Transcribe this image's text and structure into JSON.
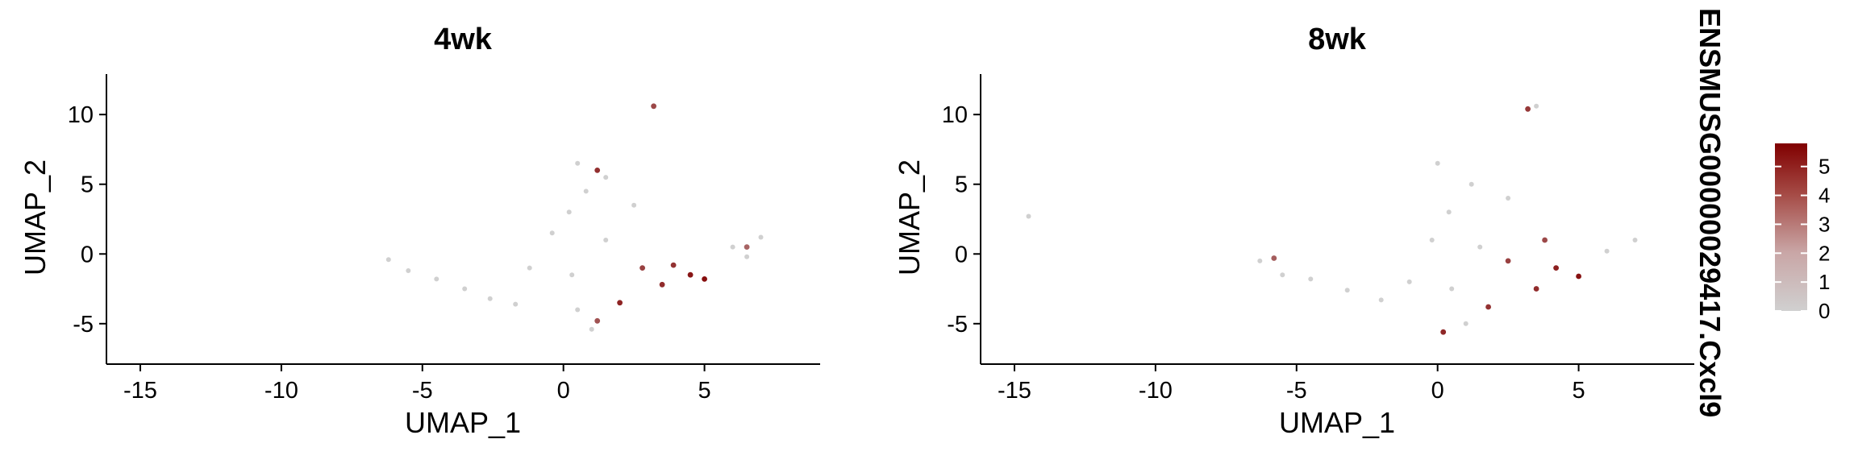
{
  "figure": {
    "legend_title": "ENSMUSG00000029417.Cxcl9"
  },
  "chart_data": [
    {
      "type": "scatter",
      "title": "4wk",
      "xlabel": "UMAP_1",
      "ylabel": "UMAP_2",
      "xlim": [
        -16.2,
        9.1
      ],
      "ylim": [
        -7.9,
        12.9
      ],
      "xticks": [
        -15,
        -10,
        -5,
        0,
        5
      ],
      "yticks": [
        -5,
        0,
        5,
        10
      ],
      "color_variable": "ENSMUSG00000029417.Cxcl9",
      "color_range": [
        0,
        5.8
      ],
      "colors": {
        "low": "#d0d0d0",
        "high": "#800000"
      },
      "series": [
        {
          "values": [
            {
              "x": -6.2,
              "y": -0.4,
              "v": 0
            },
            {
              "x": -5.5,
              "y": -1.2,
              "v": 0
            },
            {
              "x": -4.5,
              "y": -1.8,
              "v": 0
            },
            {
              "x": -3.5,
              "y": -2.5,
              "v": 0
            },
            {
              "x": -2.6,
              "y": -3.2,
              "v": 0
            },
            {
              "x": -1.7,
              "y": -3.6,
              "v": 0
            },
            {
              "x": -1.2,
              "y": -1.0,
              "v": 0
            },
            {
              "x": -0.4,
              "y": 1.5,
              "v": 0
            },
            {
              "x": 0.2,
              "y": 3.0,
              "v": 0
            },
            {
              "x": 0.8,
              "y": 4.5,
              "v": 0
            },
            {
              "x": 0.5,
              "y": 6.5,
              "v": 0
            },
            {
              "x": 1.5,
              "y": 5.5,
              "v": 0
            },
            {
              "x": 2.5,
              "y": 3.5,
              "v": 0
            },
            {
              "x": 1.5,
              "y": 1.0,
              "v": 0
            },
            {
              "x": 0.3,
              "y": -1.5,
              "v": 0
            },
            {
              "x": 0.5,
              "y": -4.0,
              "v": 0
            },
            {
              "x": 1.0,
              "y": -5.4,
              "v": 0
            },
            {
              "x": 6.0,
              "y": 0.5,
              "v": 0
            },
            {
              "x": 7.0,
              "y": 1.2,
              "v": 0
            },
            {
              "x": 6.5,
              "y": -0.2,
              "v": 0
            },
            {
              "x": 3.2,
              "y": 10.6,
              "v": 3.8
            },
            {
              "x": 1.2,
              "y": 6.0,
              "v": 4.5
            },
            {
              "x": 4.5,
              "y": -1.5,
              "v": 5.2
            },
            {
              "x": 5.0,
              "y": -1.8,
              "v": 5.4
            },
            {
              "x": 3.5,
              "y": -2.2,
              "v": 4.6
            },
            {
              "x": 2.8,
              "y": -1.0,
              "v": 4.0
            },
            {
              "x": 2.0,
              "y": -3.5,
              "v": 4.8
            },
            {
              "x": 1.2,
              "y": -4.8,
              "v": 3.5
            },
            {
              "x": 3.9,
              "y": -0.8,
              "v": 4.4
            },
            {
              "x": 6.5,
              "y": 0.5,
              "v": 3.0
            }
          ]
        }
      ]
    },
    {
      "type": "scatter",
      "title": "8wk",
      "xlabel": "UMAP_1",
      "ylabel": "UMAP_2",
      "xlim": [
        -16.2,
        9.1
      ],
      "ylim": [
        -7.9,
        12.9
      ],
      "xticks": [
        -15,
        -10,
        -5,
        0,
        5
      ],
      "yticks": [
        -5,
        0,
        5,
        10
      ],
      "color_variable": "ENSMUSG00000029417.Cxcl9",
      "color_range": [
        0,
        5.8
      ],
      "colors": {
        "low": "#d0d0d0",
        "high": "#800000"
      },
      "series": [
        {
          "values": [
            {
              "x": -14.5,
              "y": 2.7,
              "v": 0
            },
            {
              "x": -6.3,
              "y": -0.5,
              "v": 0
            },
            {
              "x": -5.5,
              "y": -1.5,
              "v": 0
            },
            {
              "x": -4.5,
              "y": -1.8,
              "v": 0
            },
            {
              "x": -3.2,
              "y": -2.6,
              "v": 0
            },
            {
              "x": -2.0,
              "y": -3.3,
              "v": 0
            },
            {
              "x": -1.0,
              "y": -2.0,
              "v": 0
            },
            {
              "x": -0.2,
              "y": 1.0,
              "v": 0
            },
            {
              "x": 0.4,
              "y": 3.0,
              "v": 0
            },
            {
              "x": 1.2,
              "y": 5.0,
              "v": 0
            },
            {
              "x": 0.0,
              "y": 6.5,
              "v": 0
            },
            {
              "x": 2.5,
              "y": 4.0,
              "v": 0
            },
            {
              "x": 1.5,
              "y": 0.5,
              "v": 0
            },
            {
              "x": 0.5,
              "y": -2.5,
              "v": 0
            },
            {
              "x": 1.0,
              "y": -5.0,
              "v": 0
            },
            {
              "x": 6.0,
              "y": 0.2,
              "v": 0
            },
            {
              "x": 7.0,
              "y": 1.0,
              "v": 0
            },
            {
              "x": 3.5,
              "y": 10.6,
              "v": 0
            },
            {
              "x": 3.2,
              "y": 10.4,
              "v": 4.2
            },
            {
              "x": 5.0,
              "y": -1.6,
              "v": 5.3
            },
            {
              "x": 4.2,
              "y": -1.0,
              "v": 4.9
            },
            {
              "x": 3.5,
              "y": -2.5,
              "v": 4.6
            },
            {
              "x": 2.5,
              "y": -0.5,
              "v": 4.0
            },
            {
              "x": 3.8,
              "y": 1.0,
              "v": 3.8
            },
            {
              "x": 1.8,
              "y": -3.8,
              "v": 4.4
            },
            {
              "x": 0.2,
              "y": -5.6,
              "v": 4.7
            },
            {
              "x": -5.8,
              "y": -0.3,
              "v": 3.2
            }
          ]
        }
      ]
    }
  ]
}
